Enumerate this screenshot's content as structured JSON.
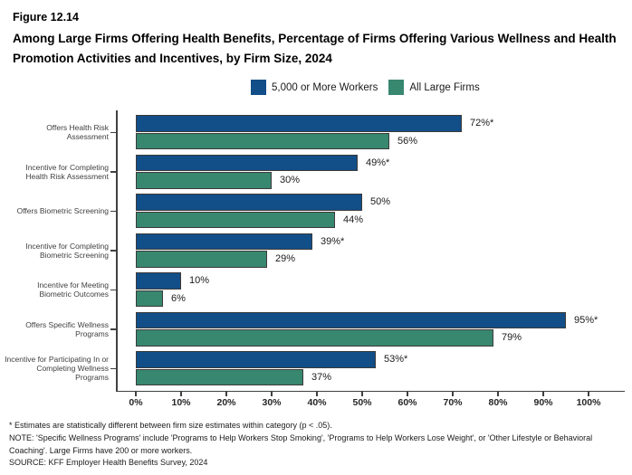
{
  "header": {
    "figure_number": "Figure 12.14",
    "title": "Among Large Firms Offering Health Benefits, Percentage of Firms Offering Various Wellness and Health Promotion Activities and Incentives, by Firm Size, 2024"
  },
  "colors": {
    "series_blue": "#124E87",
    "series_teal": "#38876F",
    "axis": "#404040",
    "text": "#262626"
  },
  "chart_data": {
    "type": "bar",
    "orientation": "horizontal",
    "title": "Among Large Firms Offering Health Benefits, Percentage of Firms Offering Various Wellness and Health Promotion Activities and Incentives, by Firm Size, 2024",
    "categories": [
      "Offers Health Risk Assessment",
      "Incentive for Completing Health Risk Assessment",
      "Offers Biometric Screening",
      "Incentive for Completing Biometric Screening",
      "Incentive for Meeting Biometric Outcomes",
      "Offers Specific Wellness Programs",
      "Incentive for Participating In or Completing Wellness Programs"
    ],
    "series": [
      {
        "name": "5,000 or More Workers",
        "color": "#124E87",
        "values": [
          72,
          49,
          50,
          39,
          10,
          95,
          53
        ],
        "labels": [
          "72%*",
          "49%*",
          "50%",
          "39%*",
          "10%",
          "95%*",
          "53%*"
        ]
      },
      {
        "name": "All Large Firms",
        "color": "#38876F",
        "values": [
          56,
          30,
          44,
          29,
          6,
          79,
          37
        ],
        "labels": [
          "56%",
          "30%",
          "44%",
          "29%",
          "6%",
          "79%",
          "37%"
        ]
      }
    ],
    "x_axis": {
      "min": 0,
      "max": 100,
      "tick_step": 10,
      "ticks": [
        "0%",
        "10%",
        "20%",
        "30%",
        "40%",
        "50%",
        "60%",
        "70%",
        "80%",
        "90%",
        "100%"
      ]
    },
    "legend_position": "top",
    "grid": false
  },
  "footnotes": {
    "significance": "* Estimates are statistically different between firm size estimates within category (p < .05).",
    "note": "NOTE: 'Specific Wellness Programs' include 'Programs to Help Workers Stop Smoking', 'Programs to Help Workers Lose Weight', or 'Other Lifestyle or Behavioral Coaching'. Large Firms have 200 or more workers.",
    "source": "SOURCE: KFF Employer Health Benefits Survey, 2024"
  }
}
